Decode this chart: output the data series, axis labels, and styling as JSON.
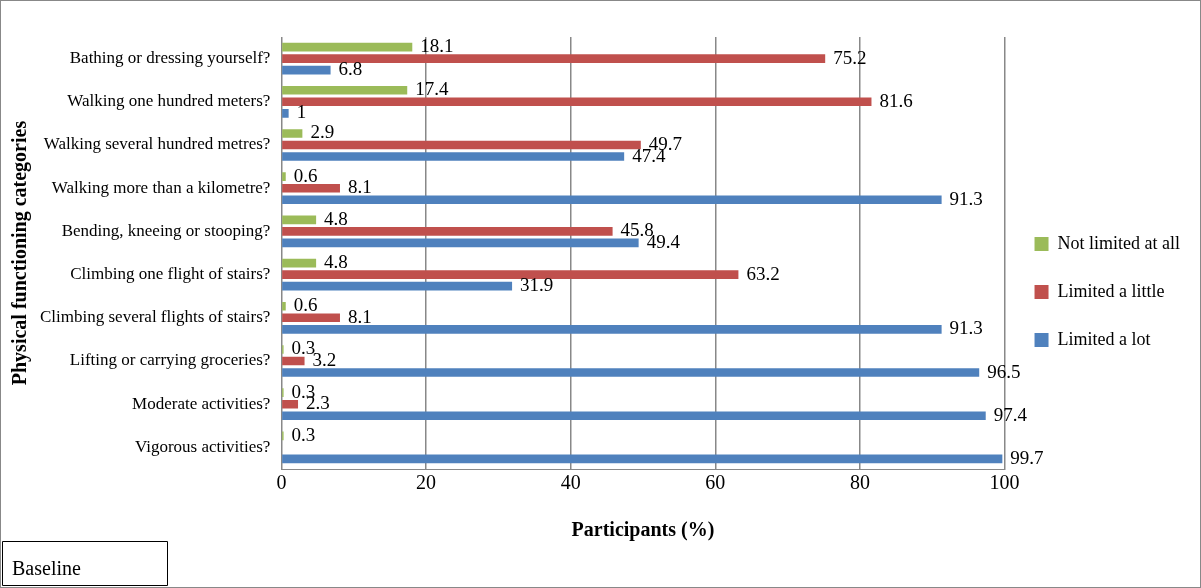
{
  "chart_data": {
    "type": "bar",
    "orientation": "horizontal",
    "xlabel": "Participants (%)",
    "ylabel": "Physical functioning categories",
    "categories": [
      "Bathing or dressing yourself?",
      "Walking one hundred meters?",
      "Walking several hundred metres?",
      "Walking more than a kilometre?",
      "Bending, kneeing or stooping?",
      "Climbing one flight of stairs?",
      "Climbing several flights of stairs?",
      "Lifting or carrying groceries?",
      "Moderate activities?",
      "Vigorous activities?"
    ],
    "series": [
      {
        "name": "Not limited at all",
        "color": "#9bbb59",
        "values": [
          18.1,
          17.4,
          2.9,
          0.6,
          4.8,
          4.8,
          0.6,
          0.3,
          0.3,
          0.3
        ]
      },
      {
        "name": "Limited a little",
        "color": "#c0504d",
        "values": [
          75.2,
          81.6,
          49.7,
          8.1,
          45.8,
          63.2,
          8.1,
          3.2,
          2.3,
          null
        ]
      },
      {
        "name": "Limited a lot",
        "color": "#4f81bd",
        "values": [
          6.8,
          1,
          47.4,
          91.3,
          49.4,
          31.9,
          91.3,
          96.5,
          97.4,
          99.7
        ]
      }
    ],
    "xlim": [
      0,
      100
    ],
    "xticks": [
      0,
      20,
      40,
      60,
      80,
      100
    ],
    "grid": "x",
    "legend": "right",
    "data_labels": true,
    "annotations": [
      "Baseline"
    ]
  }
}
